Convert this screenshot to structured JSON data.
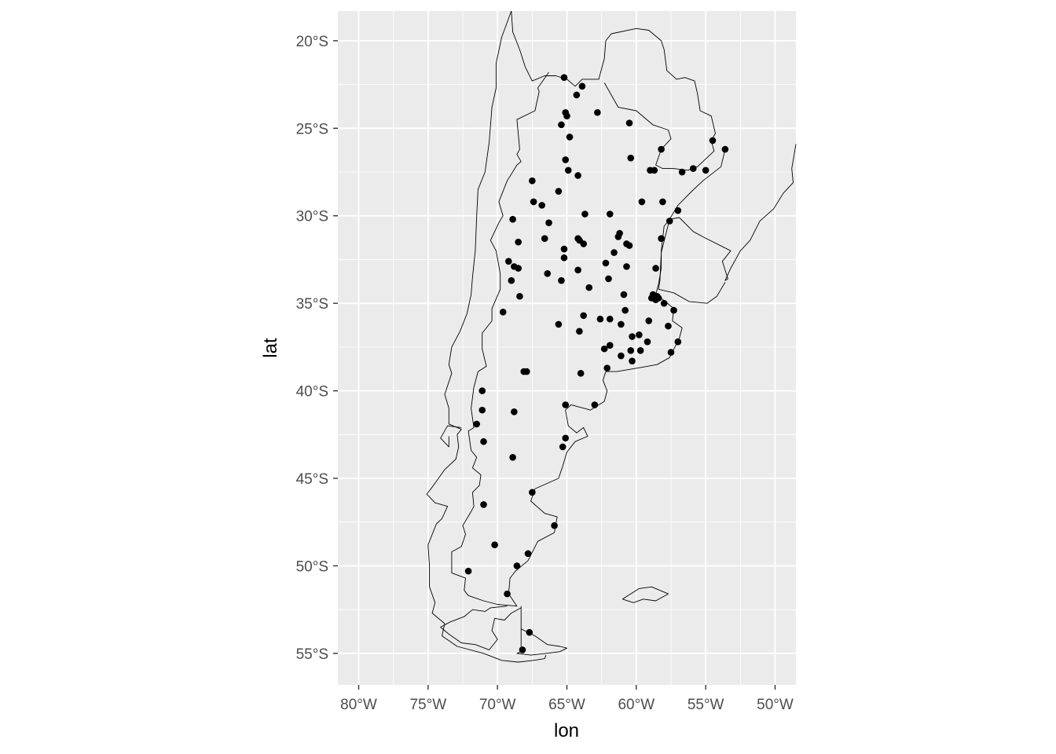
{
  "chart_data": {
    "type": "scatter",
    "projection": "map",
    "xlabel": "lon",
    "ylabel": "lat",
    "xlim": [
      -81.5,
      -48.5
    ],
    "ylim": [
      -56.8,
      -18.3
    ],
    "x_ticks": [
      {
        "value": -80,
        "label": "80°W"
      },
      {
        "value": -75,
        "label": "75°W"
      },
      {
        "value": -70,
        "label": "70°W"
      },
      {
        "value": -65,
        "label": "65°W"
      },
      {
        "value": -60,
        "label": "60°W"
      },
      {
        "value": -55,
        "label": "55°W"
      },
      {
        "value": -50,
        "label": "50°W"
      }
    ],
    "y_ticks": [
      {
        "value": -20,
        "label": "20°S"
      },
      {
        "value": -25,
        "label": "25°S"
      },
      {
        "value": -30,
        "label": "30°S"
      },
      {
        "value": -35,
        "label": "35°S"
      },
      {
        "value": -40,
        "label": "40°S"
      },
      {
        "value": -45,
        "label": "45°S"
      },
      {
        "value": -50,
        "label": "50°S"
      },
      {
        "value": -55,
        "label": "55°S"
      }
    ],
    "grid": true,
    "panel_background": "#ebebeb",
    "grid_color": "#ffffff",
    "point_color": "#000000",
    "outline_color": "#000000",
    "points": [
      [
        -65.2,
        -22.1
      ],
      [
        -64.3,
        -23.1
      ],
      [
        -63.9,
        -22.6
      ],
      [
        -65.1,
        -24.1
      ],
      [
        -65.0,
        -24.3
      ],
      [
        -62.8,
        -24.1
      ],
      [
        -65.4,
        -24.8
      ],
      [
        -60.5,
        -24.7
      ],
      [
        -64.8,
        -25.5
      ],
      [
        -65.1,
        -26.8
      ],
      [
        -60.4,
        -26.7
      ],
      [
        -58.2,
        -26.2
      ],
      [
        -54.5,
        -25.7
      ],
      [
        -53.6,
        -26.2
      ],
      [
        -64.9,
        -27.4
      ],
      [
        -64.2,
        -27.7
      ],
      [
        -59.0,
        -27.4
      ],
      [
        -58.7,
        -27.4
      ],
      [
        -56.7,
        -27.5
      ],
      [
        -55.9,
        -27.3
      ],
      [
        -55.0,
        -27.4
      ],
      [
        -67.5,
        -28.0
      ],
      [
        -65.6,
        -28.6
      ],
      [
        -67.4,
        -29.2
      ],
      [
        -66.8,
        -29.4
      ],
      [
        -59.6,
        -29.2
      ],
      [
        -58.1,
        -29.2
      ],
      [
        -57.0,
        -29.7
      ],
      [
        -63.7,
        -29.9
      ],
      [
        -61.9,
        -29.9
      ],
      [
        -68.9,
        -30.2
      ],
      [
        -66.3,
        -30.4
      ],
      [
        -57.6,
        -30.3
      ],
      [
        -61.2,
        -31.0
      ],
      [
        -61.3,
        -31.2
      ],
      [
        -64.2,
        -31.3
      ],
      [
        -64.1,
        -31.4
      ],
      [
        -66.6,
        -31.3
      ],
      [
        -58.2,
        -31.3
      ],
      [
        -68.5,
        -31.5
      ],
      [
        -63.8,
        -31.6
      ],
      [
        -60.7,
        -31.6
      ],
      [
        -60.5,
        -31.7
      ],
      [
        -65.2,
        -31.9
      ],
      [
        -61.6,
        -32.1
      ],
      [
        -65.2,
        -32.4
      ],
      [
        -69.2,
        -32.6
      ],
      [
        -68.8,
        -32.9
      ],
      [
        -62.2,
        -32.7
      ],
      [
        -60.7,
        -32.9
      ],
      [
        -68.5,
        -33.0
      ],
      [
        -64.2,
        -33.1
      ],
      [
        -66.4,
        -33.3
      ],
      [
        -58.6,
        -33.0
      ],
      [
        -69.0,
        -33.7
      ],
      [
        -65.4,
        -33.7
      ],
      [
        -62.0,
        -33.6
      ],
      [
        -63.4,
        -34.1
      ],
      [
        -68.4,
        -34.6
      ],
      [
        -60.9,
        -34.5
      ],
      [
        -58.8,
        -34.5
      ],
      [
        -58.7,
        -34.6
      ],
      [
        -58.5,
        -34.6
      ],
      [
        -58.9,
        -34.7
      ],
      [
        -58.6,
        -34.8
      ],
      [
        -58.4,
        -34.7
      ],
      [
        -58.0,
        -35.0
      ],
      [
        -57.3,
        -35.4
      ],
      [
        -60.8,
        -35.4
      ],
      [
        -69.6,
        -35.5
      ],
      [
        -63.8,
        -35.7
      ],
      [
        -62.6,
        -35.9
      ],
      [
        -61.9,
        -35.9
      ],
      [
        -65.6,
        -36.2
      ],
      [
        -61.1,
        -36.2
      ],
      [
        -59.1,
        -36.0
      ],
      [
        -57.7,
        -36.3
      ],
      [
        -64.1,
        -36.6
      ],
      [
        -60.3,
        -36.9
      ],
      [
        -59.8,
        -36.8
      ],
      [
        -59.2,
        -37.2
      ],
      [
        -57.0,
        -37.2
      ],
      [
        -62.3,
        -37.6
      ],
      [
        -61.9,
        -37.4
      ],
      [
        -60.4,
        -37.7
      ],
      [
        -59.7,
        -37.7
      ],
      [
        -61.1,
        -38.0
      ],
      [
        -57.5,
        -37.8
      ],
      [
        -60.3,
        -38.3
      ],
      [
        -62.1,
        -38.7
      ],
      [
        -68.1,
        -38.9
      ],
      [
        -67.9,
        -38.9
      ],
      [
        -64.0,
        -39.0
      ],
      [
        -71.1,
        -40.0
      ],
      [
        -65.1,
        -40.8
      ],
      [
        -63.0,
        -40.8
      ],
      [
        -71.1,
        -41.1
      ],
      [
        -68.8,
        -41.2
      ],
      [
        -71.5,
        -41.9
      ],
      [
        -65.1,
        -42.7
      ],
      [
        -71.0,
        -42.9
      ],
      [
        -65.3,
        -43.2
      ],
      [
        -68.9,
        -43.8
      ],
      [
        -71.0,
        -46.5
      ],
      [
        -67.5,
        -45.8
      ],
      [
        -65.9,
        -47.7
      ],
      [
        -70.2,
        -48.8
      ],
      [
        -67.8,
        -49.3
      ],
      [
        -68.6,
        -50.0
      ],
      [
        -72.1,
        -50.3
      ],
      [
        -69.3,
        -51.6
      ],
      [
        -67.7,
        -53.8
      ],
      [
        -68.2,
        -54.8
      ]
    ],
    "lines": [
      [
        [
          -69.0,
          -18.3
        ],
        [
          -68.9,
          -19.5
        ],
        [
          -68.4,
          -20.5
        ],
        [
          -68.0,
          -21.5
        ],
        [
          -67.5,
          -22.3
        ],
        [
          -66.6,
          -22.0
        ],
        [
          -65.8,
          -22.0
        ],
        [
          -65.0,
          -22.2
        ],
        [
          -64.4,
          -22.6
        ],
        [
          -63.9,
          -22.2
        ],
        [
          -62.7,
          -22.2
        ],
        [
          -62.3,
          -21.0
        ],
        [
          -62.2,
          -20.0
        ],
        [
          -61.8,
          -19.6
        ],
        [
          -60.0,
          -19.3
        ],
        [
          -59.1,
          -19.4
        ],
        [
          -58.2,
          -20.0
        ],
        [
          -58.0,
          -20.5
        ],
        [
          -57.8,
          -21.7
        ],
        [
          -57.1,
          -22.2
        ],
        [
          -56.5,
          -22.1
        ],
        [
          -55.8,
          -22.3
        ],
        [
          -55.6,
          -23.0
        ],
        [
          -55.4,
          -24.0
        ],
        [
          -54.6,
          -24.3
        ],
        [
          -54.3,
          -25.3
        ],
        [
          -54.6,
          -25.7
        ],
        [
          -54.4,
          -26.3
        ],
        [
          -55.2,
          -26.9
        ],
        [
          -55.6,
          -27.2
        ],
        [
          -56.3,
          -27.4
        ],
        [
          -57.3,
          -27.3
        ],
        [
          -58.1,
          -27.3
        ],
        [
          -58.6,
          -27.1
        ],
        [
          -58.2,
          -26.2
        ],
        [
          -57.5,
          -25.6
        ],
        [
          -57.7,
          -25.1
        ],
        [
          -58.8,
          -24.8
        ],
        [
          -60.0,
          -24.0
        ],
        [
          -61.3,
          -23.8
        ],
        [
          -62.3,
          -22.4
        ]
      ],
      [
        [
          -53.6,
          -26.2
        ],
        [
          -53.9,
          -27.2
        ],
        [
          -55.2,
          -28.0
        ],
        [
          -56.0,
          -28.6
        ],
        [
          -57.0,
          -29.4
        ],
        [
          -57.6,
          -30.2
        ],
        [
          -58.0,
          -30.6
        ],
        [
          -58.2,
          -32.0
        ],
        [
          -58.2,
          -33.0
        ],
        [
          -58.4,
          -33.9
        ],
        [
          -58.6,
          -34.5
        ],
        [
          -57.9,
          -34.9
        ],
        [
          -57.3,
          -35.3
        ],
        [
          -57.4,
          -36.0
        ],
        [
          -56.7,
          -36.4
        ],
        [
          -56.9,
          -37.0
        ],
        [
          -57.6,
          -38.1
        ],
        [
          -58.5,
          -38.5
        ],
        [
          -59.9,
          -38.7
        ],
        [
          -61.4,
          -38.9
        ],
        [
          -62.2,
          -38.9
        ],
        [
          -62.4,
          -39.4
        ],
        [
          -62.1,
          -40.0
        ],
        [
          -62.3,
          -40.6
        ],
        [
          -63.3,
          -41.1
        ],
        [
          -64.7,
          -40.8
        ],
        [
          -65.1,
          -41.1
        ],
        [
          -64.9,
          -42.0
        ],
        [
          -64.3,
          -42.4
        ],
        [
          -63.8,
          -42.1
        ],
        [
          -63.5,
          -42.6
        ],
        [
          -64.4,
          -42.9
        ],
        [
          -65.0,
          -43.5
        ],
        [
          -65.3,
          -44.3
        ],
        [
          -65.6,
          -45.0
        ],
        [
          -67.3,
          -45.6
        ],
        [
          -67.6,
          -46.3
        ],
        [
          -66.6,
          -47.0
        ],
        [
          -65.7,
          -47.2
        ],
        [
          -65.9,
          -48.1
        ],
        [
          -67.1,
          -48.6
        ],
        [
          -67.8,
          -49.7
        ],
        [
          -68.7,
          -50.3
        ],
        [
          -69.1,
          -50.7
        ],
        [
          -69.2,
          -51.6
        ],
        [
          -68.6,
          -52.3
        ],
        [
          -70.0,
          -52.2
        ],
        [
          -71.0,
          -52.0
        ],
        [
          -72.1,
          -51.7
        ],
        [
          -72.4,
          -51.4
        ],
        [
          -72.3,
          -50.7
        ],
        [
          -73.3,
          -50.4
        ],
        [
          -73.3,
          -49.2
        ],
        [
          -72.6,
          -48.9
        ],
        [
          -72.3,
          -48.2
        ],
        [
          -72.5,
          -47.7
        ],
        [
          -71.9,
          -46.9
        ],
        [
          -71.7,
          -46.6
        ],
        [
          -71.8,
          -45.8
        ],
        [
          -71.3,
          -45.4
        ],
        [
          -71.2,
          -44.8
        ],
        [
          -71.8,
          -44.4
        ],
        [
          -71.5,
          -43.8
        ],
        [
          -71.9,
          -43.4
        ],
        [
          -72.1,
          -42.3
        ],
        [
          -71.7,
          -42.1
        ],
        [
          -71.9,
          -41.0
        ],
        [
          -71.7,
          -39.8
        ],
        [
          -71.4,
          -38.9
        ],
        [
          -70.8,
          -38.6
        ],
        [
          -71.1,
          -37.6
        ],
        [
          -71.1,
          -36.7
        ],
        [
          -70.4,
          -36.0
        ],
        [
          -70.4,
          -35.3
        ],
        [
          -69.8,
          -34.2
        ],
        [
          -69.8,
          -33.3
        ],
        [
          -70.1,
          -32.0
        ],
        [
          -70.5,
          -31.4
        ],
        [
          -69.9,
          -30.4
        ],
        [
          -69.6,
          -30.0
        ],
        [
          -69.9,
          -29.2
        ],
        [
          -69.3,
          -28.0
        ],
        [
          -68.6,
          -27.1
        ],
        [
          -68.3,
          -26.9
        ],
        [
          -68.6,
          -26.5
        ],
        [
          -68.4,
          -26.2
        ],
        [
          -68.6,
          -24.5
        ],
        [
          -67.3,
          -24.0
        ],
        [
          -67.0,
          -22.9
        ],
        [
          -67.1,
          -22.7
        ],
        [
          -66.3,
          -21.8
        ]
      ],
      [
        [
          -68.3,
          -52.3
        ],
        [
          -68.3,
          -54.9
        ],
        [
          -68.6,
          -55.0
        ],
        [
          -67.6,
          -55.1
        ],
        [
          -66.5,
          -55.0
        ],
        [
          -65.5,
          -54.9
        ],
        [
          -65.0,
          -54.7
        ],
        [
          -65.5,
          -54.6
        ],
        [
          -66.4,
          -54.5
        ],
        [
          -67.3,
          -54.0
        ],
        [
          -68.3,
          -53.6
        ]
      ],
      [
        [
          -68.3,
          -52.4
        ],
        [
          -69.0,
          -52.7
        ],
        [
          -69.5,
          -53.1
        ],
        [
          -70.2,
          -53.0
        ],
        [
          -70.4,
          -53.7
        ],
        [
          -70.0,
          -54.2
        ],
        [
          -70.6,
          -54.8
        ],
        [
          -71.6,
          -54.5
        ],
        [
          -72.6,
          -54.4
        ],
        [
          -73.5,
          -53.9
        ],
        [
          -74.1,
          -53.5
        ],
        [
          -73.4,
          -53.2
        ],
        [
          -72.4,
          -52.9
        ],
        [
          -71.8,
          -52.5
        ],
        [
          -70.9,
          -52.6
        ],
        [
          -70.5,
          -52.4
        ],
        [
          -69.3,
          -52.3
        ]
      ],
      [
        [
          -69.0,
          -18.3
        ],
        [
          -69.7,
          -19.8
        ],
        [
          -70.1,
          -21.3
        ],
        [
          -70.1,
          -22.7
        ],
        [
          -70.4,
          -23.8
        ],
        [
          -70.6,
          -25.8
        ],
        [
          -70.9,
          -27.5
        ],
        [
          -71.4,
          -28.5
        ],
        [
          -71.5,
          -30.0
        ],
        [
          -71.6,
          -32.0
        ],
        [
          -71.8,
          -33.5
        ],
        [
          -71.9,
          -34.5
        ],
        [
          -72.2,
          -35.6
        ],
        [
          -72.7,
          -36.6
        ],
        [
          -73.3,
          -37.5
        ],
        [
          -73.5,
          -38.5
        ],
        [
          -73.3,
          -39.0
        ],
        [
          -73.8,
          -40.2
        ],
        [
          -73.5,
          -41.0
        ],
        [
          -73.5,
          -41.9
        ],
        [
          -72.6,
          -42.2
        ],
        [
          -72.9,
          -42.5
        ],
        [
          -72.8,
          -43.2
        ],
        [
          -73.0,
          -43.9
        ],
        [
          -73.8,
          -44.5
        ],
        [
          -74.7,
          -45.5
        ],
        [
          -75.1,
          -45.9
        ],
        [
          -74.5,
          -46.4
        ],
        [
          -73.6,
          -46.6
        ],
        [
          -74.0,
          -47.3
        ],
        [
          -74.4,
          -47.6
        ],
        [
          -75.0,
          -48.8
        ],
        [
          -74.9,
          -50.0
        ],
        [
          -74.9,
          -51.2
        ],
        [
          -74.5,
          -52.1
        ],
        [
          -74.7,
          -52.7
        ],
        [
          -73.8,
          -53.3
        ],
        [
          -74.0,
          -54.0
        ],
        [
          -72.9,
          -54.6
        ],
        [
          -71.0,
          -55.0
        ],
        [
          -69.7,
          -55.4
        ],
        [
          -68.5,
          -55.5
        ],
        [
          -67.4,
          -55.4
        ],
        [
          -66.6,
          -55.3
        ],
        [
          -66.5,
          -55.1
        ]
      ],
      [
        [
          -72.6,
          -42.1
        ],
        [
          -73.6,
          -42.0
        ],
        [
          -74.1,
          -42.7
        ],
        [
          -73.5,
          -43.2
        ],
        [
          -73.5,
          -42.6
        ]
      ],
      [
        [
          -48.5,
          -25.9
        ],
        [
          -48.8,
          -27.3
        ],
        [
          -48.7,
          -28.1
        ],
        [
          -49.4,
          -28.7
        ],
        [
          -50.1,
          -29.6
        ],
        [
          -51.1,
          -30.3
        ],
        [
          -51.8,
          -31.4
        ],
        [
          -52.5,
          -32.0
        ],
        [
          -53.2,
          -33.0
        ],
        [
          -53.6,
          -33.7
        ],
        [
          -53.4,
          -33.6
        ],
        [
          -53.8,
          -32.6
        ],
        [
          -53.2,
          -32.0
        ],
        [
          -55.2,
          -31.2
        ],
        [
          -55.9,
          -30.9
        ],
        [
          -56.9,
          -30.1
        ],
        [
          -57.6,
          -30.2
        ]
      ],
      [
        [
          -57.6,
          -30.2
        ],
        [
          -58.2,
          -32.1
        ],
        [
          -58.3,
          -33.7
        ],
        [
          -58.4,
          -34.2
        ],
        [
          -57.3,
          -34.4
        ],
        [
          -56.2,
          -34.9
        ],
        [
          -54.9,
          -35.0
        ],
        [
          -54.2,
          -34.6
        ],
        [
          -53.6,
          -33.8
        ]
      ],
      [
        [
          -61.0,
          -51.9
        ],
        [
          -59.8,
          -51.3
        ],
        [
          -58.9,
          -51.2
        ],
        [
          -57.7,
          -51.6
        ],
        [
          -58.6,
          -52.0
        ],
        [
          -59.5,
          -51.9
        ],
        [
          -60.2,
          -52.1
        ],
        [
          -61.0,
          -51.9
        ]
      ]
    ]
  }
}
